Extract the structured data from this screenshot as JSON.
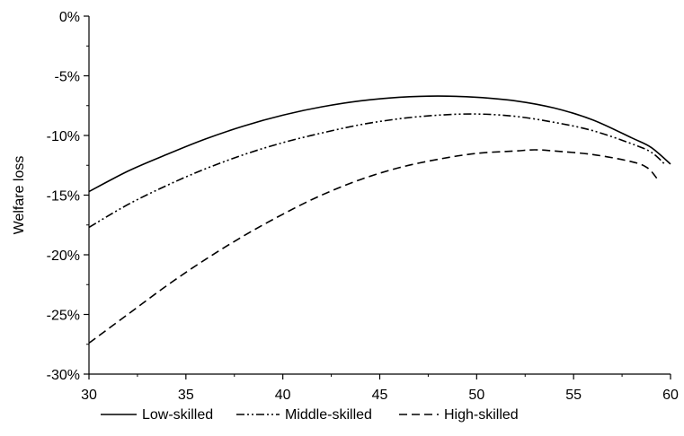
{
  "chart_data": {
    "type": "line",
    "title": "",
    "xlabel": "",
    "ylabel": "Welfare loss",
    "xlim": [
      30,
      60
    ],
    "ylim": [
      -30,
      0
    ],
    "x_ticks": [
      30,
      35,
      40,
      45,
      50,
      55,
      60
    ],
    "x_tick_labels": [
      "30",
      "35",
      "40",
      "45",
      "50",
      "55",
      "60"
    ],
    "y_ticks": [
      0,
      -5,
      -10,
      -15,
      -20,
      -25,
      -30
    ],
    "y_tick_labels": [
      "0%",
      "-5%",
      "-10%",
      "-15%",
      "-20%",
      "-25%",
      "-30%"
    ],
    "grid": false,
    "legend_position": "bottom",
    "series": [
      {
        "name": "Low-skilled",
        "style": "solid",
        "x": [
          30,
          32,
          34,
          36,
          38,
          40,
          42,
          44,
          46,
          48,
          50,
          52,
          54,
          56,
          58,
          59,
          60
        ],
        "y": [
          -14.7,
          -13.0,
          -11.6,
          -10.3,
          -9.2,
          -8.3,
          -7.6,
          -7.1,
          -6.8,
          -6.7,
          -6.8,
          -7.1,
          -7.7,
          -8.7,
          -10.2,
          -11.0,
          -12.4
        ]
      },
      {
        "name": "Middle-skilled",
        "style": "dash-dot-dot",
        "x": [
          30,
          32,
          34,
          36,
          38,
          40,
          42,
          44,
          46,
          48,
          50,
          52,
          54,
          56,
          58,
          59,
          59.7
        ],
        "y": [
          -17.7,
          -15.8,
          -14.2,
          -12.8,
          -11.6,
          -10.6,
          -9.8,
          -9.1,
          -8.6,
          -8.3,
          -8.2,
          -8.4,
          -8.9,
          -9.6,
          -10.7,
          -11.4,
          -12.4
        ]
      },
      {
        "name": "High-skilled",
        "style": "dashed",
        "x": [
          30,
          32,
          34,
          36,
          38,
          40,
          42,
          44,
          46,
          48,
          50,
          52,
          53,
          54,
          56,
          58,
          58.8,
          59.3
        ],
        "y": [
          -27.4,
          -25.0,
          -22.6,
          -20.4,
          -18.4,
          -16.6,
          -15.0,
          -13.7,
          -12.7,
          -12.0,
          -11.5,
          -11.3,
          -11.2,
          -11.3,
          -11.6,
          -12.2,
          -12.7,
          -13.6
        ]
      }
    ]
  }
}
